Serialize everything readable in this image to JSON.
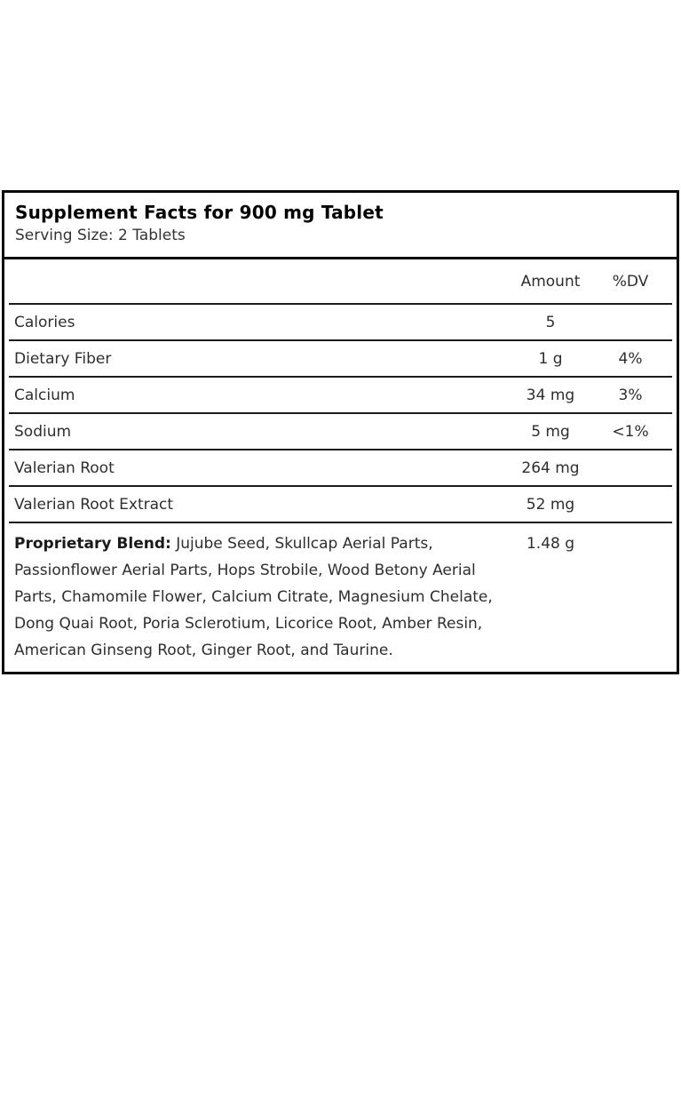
{
  "header": {
    "title": "Supplement Facts for 900 mg Tablet",
    "serving_size": "Serving Size: 2 Tablets"
  },
  "table": {
    "columns": [
      "",
      "Amount",
      "%DV"
    ],
    "rows": [
      {
        "label": "Calories",
        "amount": "5",
        "dv": ""
      },
      {
        "label": "Dietary Fiber",
        "amount": "1 g",
        "dv": "4%"
      },
      {
        "label": "Calcium",
        "amount": "34 mg",
        "dv": "3%"
      },
      {
        "label": "Sodium",
        "amount": "5 mg",
        "dv": "<1%"
      },
      {
        "label": "Valerian Root",
        "amount": "264 mg",
        "dv": ""
      },
      {
        "label": "Valerian Root Extract",
        "amount": "52 mg",
        "dv": ""
      }
    ],
    "blend": {
      "label_bold": "Proprietary Blend:",
      "label_rest": " Jujube Seed, Skullcap Aerial Parts, Passionflower Aerial Parts, Hops Strobile, Wood Betony Aerial Parts, Chamomile Flower, Calcium Citrate, Magnesium Chelate, Dong Quai Root, Poria Sclerotium, Licorice Root, Amber Resin, American Ginseng Root, Ginger Root, and Taurine.",
      "amount": "1.48 g",
      "dv": ""
    }
  },
  "colors": {
    "panel_border": "#0a0a0a",
    "divider": "#1c1c1c",
    "title_text": "#000000",
    "body_text": "#2e2e2e"
  }
}
